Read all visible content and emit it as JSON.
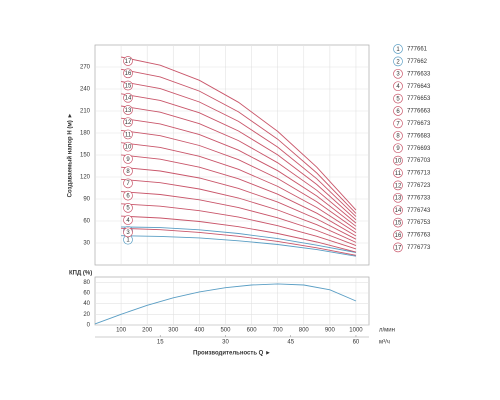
{
  "chart_data": [
    {
      "type": "line",
      "ylabel": "Создаваемый напор Н (м) ►",
      "x": [
        100,
        250,
        400,
        550,
        700,
        850,
        1000
      ],
      "xlim": [
        0,
        1050
      ],
      "xticks": [
        100,
        200,
        300,
        400,
        500,
        600,
        700,
        800,
        900,
        1000
      ],
      "ylim": [
        0,
        300
      ],
      "yticks": [
        30,
        60,
        90,
        120,
        150,
        180,
        210,
        240,
        270
      ],
      "grid": true,
      "series": [
        {
          "name": "777661",
          "label": "1",
          "color": "#5a9ec4",
          "values": [
            40,
            39,
            37,
            33,
            28,
            21,
            12
          ]
        },
        {
          "name": "777662",
          "label": "2",
          "color": "#5a9ec4",
          "values": [
            52,
            51,
            48,
            43,
            36,
            27,
            17
          ]
        },
        {
          "name": "7776633",
          "label": "3",
          "color": "#c9566a",
          "values": [
            50.0,
            48.1,
            44.5,
            39.2,
            32.2,
            23.5,
            13.2
          ]
        },
        {
          "name": "7776643",
          "label": "4",
          "color": "#c9566a",
          "values": [
            66.7,
            64.1,
            59.3,
            52.2,
            42.9,
            31.4,
            17.6
          ]
        },
        {
          "name": "7776653",
          "label": "5",
          "color": "#c9566a",
          "values": [
            83.4,
            80.2,
            74.1,
            65.3,
            53.6,
            39.2,
            22.0
          ]
        },
        {
          "name": "7776663",
          "label": "6",
          "color": "#c9566a",
          "values": [
            100.1,
            96.2,
            88.9,
            78.3,
            64.3,
            47.0,
            26.4
          ]
        },
        {
          "name": "7776673",
          "label": "7",
          "color": "#c9566a",
          "values": [
            116.8,
            112.2,
            103.7,
            91.4,
            75.0,
            54.9,
            30.8
          ]
        },
        {
          "name": "7776683",
          "label": "8",
          "color": "#c9566a",
          "values": [
            133.4,
            128.2,
            118.6,
            104.4,
            85.8,
            62.7,
            35.2
          ]
        },
        {
          "name": "7776693",
          "label": "9",
          "color": "#c9566a",
          "values": [
            150.1,
            144.3,
            133.4,
            117.5,
            96.5,
            70.6,
            39.6
          ]
        },
        {
          "name": "7776703",
          "label": "10",
          "color": "#c9566a",
          "values": [
            166.8,
            160.3,
            148.2,
            130.5,
            107.2,
            78.4,
            44.0
          ]
        },
        {
          "name": "7776713",
          "label": "11",
          "color": "#c9566a",
          "values": [
            183.5,
            176.3,
            163.0,
            143.6,
            117.9,
            86.2,
            48.4
          ]
        },
        {
          "name": "7776723",
          "label": "12",
          "color": "#c9566a",
          "values": [
            200.2,
            192.4,
            177.8,
            156.6,
            128.6,
            94.1,
            52.8
          ]
        },
        {
          "name": "7776733",
          "label": "13",
          "color": "#c9566a",
          "values": [
            216.8,
            208.4,
            192.7,
            169.7,
            139.4,
            101.9,
            57.2
          ]
        },
        {
          "name": "7776743",
          "label": "14",
          "color": "#c9566a",
          "values": [
            233.5,
            224.4,
            207.5,
            182.7,
            150.1,
            109.8,
            61.6
          ]
        },
        {
          "name": "7776753",
          "label": "15",
          "color": "#c9566a",
          "values": [
            250.2,
            240.5,
            222.3,
            195.8,
            160.8,
            117.6,
            66.0
          ]
        },
        {
          "name": "7776763",
          "label": "16",
          "color": "#c9566a",
          "values": [
            266.9,
            256.5,
            237.1,
            208.8,
            171.5,
            125.4,
            70.4
          ]
        },
        {
          "name": "7776773",
          "label": "17",
          "color": "#c9566a",
          "values": [
            283.6,
            272.5,
            251.9,
            221.9,
            182.2,
            133.3,
            74.8
          ]
        }
      ]
    },
    {
      "type": "line",
      "ylabel": "КПД (%)",
      "xlabel": "Производительность Q ►",
      "x": [
        0,
        100,
        200,
        300,
        400,
        500,
        600,
        700,
        800,
        900,
        1000
      ],
      "values": [
        2,
        20,
        37,
        51,
        62,
        70,
        75,
        77,
        75,
        66,
        45
      ],
      "color": "#5a9ec4",
      "xlim": [
        0,
        1050
      ],
      "xticks": [
        100,
        200,
        300,
        400,
        500,
        600,
        700,
        800,
        900,
        1000
      ],
      "xunit": "л/мин",
      "x2lim": [
        0,
        63
      ],
      "x2ticks": [
        15,
        30,
        45,
        60
      ],
      "x2unit": "м³/ч",
      "ylim": [
        0,
        90
      ],
      "yticks": [
        0,
        20,
        40,
        60,
        80
      ],
      "grid": true
    }
  ]
}
